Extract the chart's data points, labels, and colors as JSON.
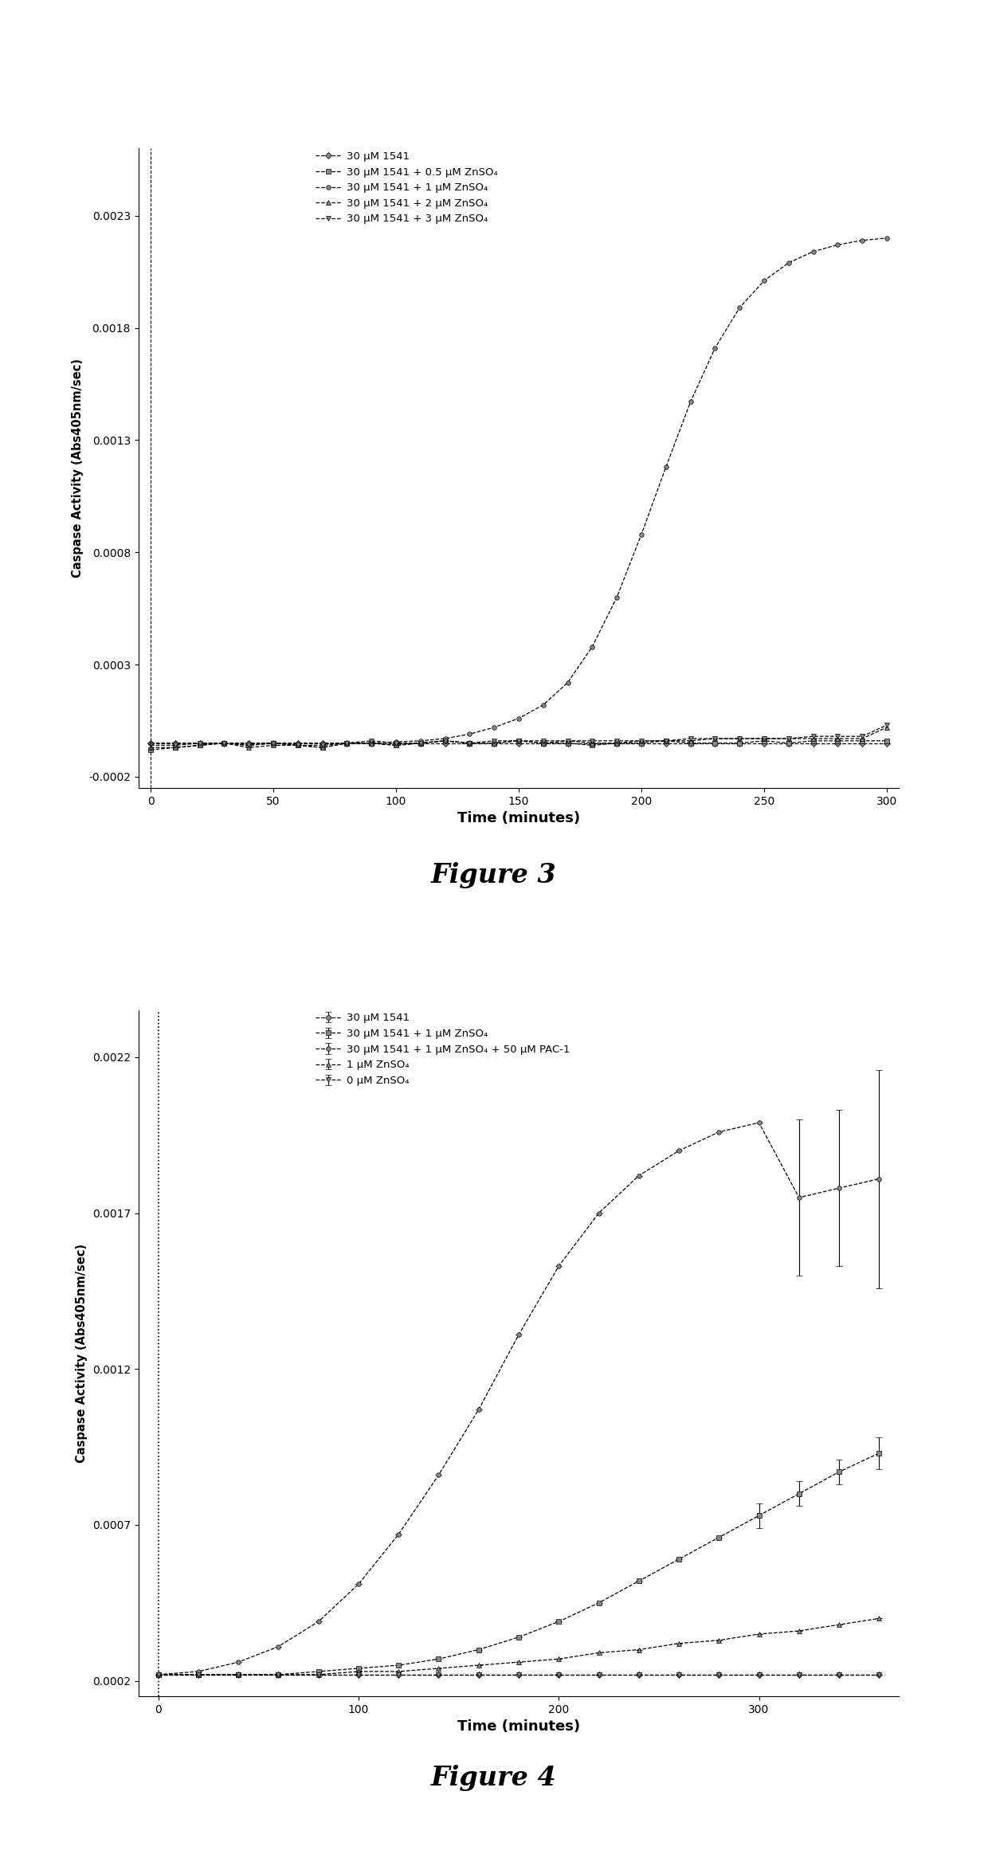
{
  "fig3": {
    "title": "Figure 3",
    "xlabel": "Time (minutes)",
    "ylabel": "Caspase Activity (Abs405nm/sec)",
    "xlim": [
      -5,
      305
    ],
    "ylim": [
      -0.00025,
      0.0026
    ],
    "yticks": [
      -0.0002,
      0.0003,
      0.0008,
      0.0013,
      0.0018,
      0.0023
    ],
    "xticks": [
      0,
      50,
      100,
      150,
      200,
      250,
      300
    ],
    "legend": [
      "30 μM 1541",
      "30 μM 1541 + 0.5 μM ZnSO₄",
      "30 μM 1541 + 1 μM ZnSO₄",
      "30 μM 1541 + 2 μM ZnSO₄",
      "30 μM 1541 + 3 μM ZnSO₄"
    ],
    "series": [
      {
        "x": [
          0,
          10,
          20,
          30,
          40,
          50,
          60,
          70,
          80,
          90,
          100,
          110,
          120,
          130,
          140,
          150,
          160,
          170,
          180,
          190,
          200,
          210,
          220,
          230,
          240,
          250,
          260,
          270,
          280,
          290,
          300
        ],
        "y": [
          -5e-05,
          -5e-05,
          -5e-05,
          -5e-05,
          -5e-05,
          -5e-05,
          -5e-05,
          -5e-05,
          -5e-05,
          -5e-05,
          -5e-05,
          -5e-05,
          -5e-05,
          -5e-05,
          -5e-05,
          -5e-05,
          -5e-05,
          -5e-05,
          -5e-05,
          -5e-05,
          -5e-05,
          -5e-05,
          -5e-05,
          -5e-05,
          -5e-05,
          -5e-05,
          -5e-05,
          -5e-05,
          -5e-05,
          -5e-05,
          -5e-05
        ]
      },
      {
        "x": [
          0,
          10,
          20,
          30,
          40,
          50,
          60,
          70,
          80,
          90,
          100,
          110,
          120,
          130,
          140,
          150,
          160,
          170,
          180,
          190,
          200,
          210,
          220,
          230,
          240,
          250,
          260,
          270,
          280,
          290,
          300
        ],
        "y": [
          -8e-05,
          -7e-05,
          -6e-05,
          -5e-05,
          -6e-05,
          -5e-05,
          -6e-05,
          -7e-05,
          -5e-05,
          -5e-05,
          -6e-05,
          -5e-05,
          -4e-05,
          -5e-05,
          -5e-05,
          -4e-05,
          -5e-05,
          -5e-05,
          -6e-05,
          -5e-05,
          -5e-05,
          -4e-05,
          -5e-05,
          -5e-05,
          -5e-05,
          -4e-05,
          -5e-05,
          -4e-05,
          -4e-05,
          -4e-05,
          -4e-05
        ]
      },
      {
        "x": [
          0,
          10,
          20,
          30,
          40,
          50,
          60,
          70,
          80,
          90,
          100,
          110,
          120,
          130,
          140,
          150,
          160,
          170,
          180,
          190,
          200,
          210,
          220,
          230,
          240,
          250,
          260,
          270,
          280,
          290,
          300
        ],
        "y": [
          -5e-05,
          -5e-05,
          -5e-05,
          -5e-05,
          -5e-05,
          -5e-05,
          -5e-05,
          -5e-05,
          -5e-05,
          -5e-05,
          -4.5e-05,
          -4e-05,
          -3e-05,
          -1e-05,
          2e-05,
          6e-05,
          0.00012,
          0.00022,
          0.00038,
          0.0006,
          0.00088,
          0.00118,
          0.00147,
          0.00171,
          0.00189,
          0.00201,
          0.00209,
          0.00214,
          0.00217,
          0.00219,
          0.0022
        ]
      },
      {
        "x": [
          0,
          10,
          20,
          30,
          40,
          50,
          60,
          70,
          80,
          90,
          100,
          110,
          120,
          130,
          140,
          150,
          160,
          170,
          180,
          190,
          200,
          210,
          220,
          230,
          240,
          250,
          260,
          270,
          280,
          290,
          300
        ],
        "y": [
          -7e-05,
          -7e-05,
          -6e-05,
          -5e-05,
          -7e-05,
          -6e-05,
          -6e-05,
          -7e-05,
          -5e-05,
          -5e-05,
          -6e-05,
          -5e-05,
          -4e-05,
          -5e-05,
          -5e-05,
          -4e-05,
          -5e-05,
          -4e-05,
          -5e-05,
          -5e-05,
          -4e-05,
          -4e-05,
          -4e-05,
          -3e-05,
          -3e-05,
          -3e-05,
          -3e-05,
          -3e-05,
          -3e-05,
          -3e-05,
          2e-05
        ]
      },
      {
        "x": [
          0,
          10,
          20,
          30,
          40,
          50,
          60,
          70,
          80,
          90,
          100,
          110,
          120,
          130,
          140,
          150,
          160,
          170,
          180,
          190,
          200,
          210,
          220,
          230,
          240,
          250,
          260,
          270,
          280,
          290,
          300
        ],
        "y": [
          -6e-05,
          -6e-05,
          -5e-05,
          -5e-05,
          -6e-05,
          -5e-05,
          -6e-05,
          -6e-05,
          -5e-05,
          -4e-05,
          -5e-05,
          -5e-05,
          -4e-05,
          -5e-05,
          -4e-05,
          -4e-05,
          -4e-05,
          -4e-05,
          -4e-05,
          -4e-05,
          -4e-05,
          -4e-05,
          -3e-05,
          -3e-05,
          -3e-05,
          -3e-05,
          -3e-05,
          -2e-05,
          -2e-05,
          -2e-05,
          3e-05
        ]
      }
    ]
  },
  "fig4": {
    "title": "Figure 4",
    "xlabel": "Time (minutes)",
    "ylabel": "Caspase Activity (Abs405nm/sec)",
    "xlim": [
      -10,
      370
    ],
    "ylim": [
      0.00015,
      0.00235
    ],
    "yticks": [
      0.0002,
      0.0007,
      0.0012,
      0.0017,
      0.0022
    ],
    "xticks": [
      0,
      100,
      200,
      300
    ],
    "legend": [
      "30 μM 1541",
      "30 μM 1541 + 1 μM ZnSO₄",
      "30 μM 1541 + 1 μM ZnSO₄ + 50 μM PAC-1",
      "1 μM ZnSO₄",
      "0 μM ZnSO₄"
    ],
    "series": [
      {
        "x": [
          0,
          20,
          40,
          60,
          80,
          100,
          120,
          140,
          160,
          180,
          200,
          220,
          240,
          260,
          280,
          300,
          320,
          340,
          360
        ],
        "y": [
          0.00022,
          0.00022,
          0.00022,
          0.00022,
          0.00022,
          0.00022,
          0.00022,
          0.00022,
          0.00022,
          0.00022,
          0.00022,
          0.00022,
          0.00022,
          0.00022,
          0.00022,
          0.00022,
          0.00022,
          0.00022,
          0.00022
        ],
        "yerr": [
          0,
          0,
          0,
          0,
          0,
          0,
          0,
          0,
          0,
          0,
          0,
          0,
          0,
          0,
          0,
          0,
          0,
          0,
          0
        ]
      },
      {
        "x": [
          0,
          20,
          40,
          60,
          80,
          100,
          120,
          140,
          160,
          180,
          200,
          220,
          240,
          260,
          280,
          300,
          320,
          340,
          360
        ],
        "y": [
          0.00022,
          0.00022,
          0.00022,
          0.00022,
          0.00023,
          0.00024,
          0.00025,
          0.00027,
          0.0003,
          0.00034,
          0.00039,
          0.00045,
          0.00052,
          0.00059,
          0.00066,
          0.00073,
          0.0008,
          0.00087,
          0.00093
        ],
        "yerr": [
          0,
          0,
          0,
          0,
          0,
          0,
          0,
          0,
          0,
          0,
          0,
          0,
          0,
          0,
          0,
          4e-05,
          4e-05,
          4e-05,
          5e-05
        ]
      },
      {
        "x": [
          0,
          20,
          40,
          60,
          80,
          100,
          120,
          140,
          160,
          180,
          200,
          220,
          240,
          260,
          280,
          300,
          320,
          340,
          360
        ],
        "y": [
          0.00022,
          0.00023,
          0.00026,
          0.00031,
          0.00039,
          0.00051,
          0.00067,
          0.00086,
          0.00107,
          0.00131,
          0.00153,
          0.0017,
          0.00182,
          0.0019,
          0.00196,
          0.00199,
          0.00175,
          0.00178,
          0.00181
        ],
        "yerr": [
          0,
          0,
          0,
          0,
          0,
          0,
          0,
          0,
          0,
          0,
          0,
          0,
          0,
          0,
          0,
          0,
          0.00025,
          0.00025,
          0.00035
        ]
      },
      {
        "x": [
          0,
          20,
          40,
          60,
          80,
          100,
          120,
          140,
          160,
          180,
          200,
          220,
          240,
          260,
          280,
          300,
          320,
          340,
          360
        ],
        "y": [
          0.00022,
          0.00022,
          0.00022,
          0.00022,
          0.00022,
          0.00023,
          0.00023,
          0.00024,
          0.00025,
          0.00026,
          0.00027,
          0.00029,
          0.0003,
          0.00032,
          0.00033,
          0.00035,
          0.00036,
          0.00038,
          0.0004
        ],
        "yerr": [
          0,
          0,
          0,
          0,
          0,
          0,
          0,
          0,
          0,
          0,
          0,
          0,
          0,
          0,
          0,
          0,
          0,
          0,
          0
        ]
      },
      {
        "x": [
          0,
          20,
          40,
          60,
          80,
          100,
          120,
          140,
          160,
          180,
          200,
          220,
          240,
          260,
          280,
          300,
          320,
          340,
          360
        ],
        "y": [
          0.00022,
          0.00022,
          0.00022,
          0.00022,
          0.00022,
          0.00022,
          0.00022,
          0.00022,
          0.00022,
          0.00022,
          0.00022,
          0.00022,
          0.00022,
          0.00022,
          0.00022,
          0.00022,
          0.00022,
          0.00022,
          0.00022
        ],
        "yerr": [
          0,
          0,
          0,
          0,
          0,
          0,
          0,
          0,
          0,
          0,
          0,
          0,
          0,
          0,
          0,
          0,
          0,
          0,
          0
        ]
      }
    ]
  }
}
